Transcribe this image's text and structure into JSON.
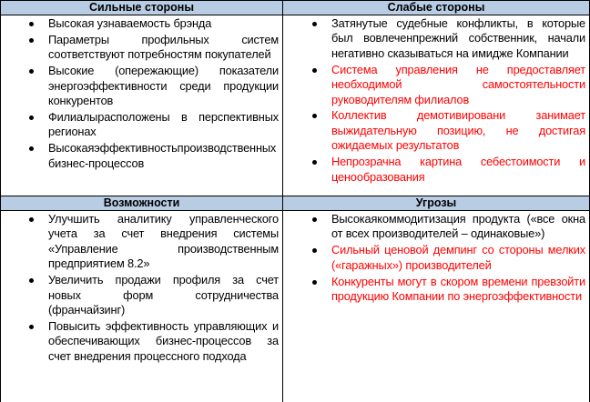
{
  "colors": {
    "header_bg": "#b8cce4",
    "highlight_text": "#ff0000",
    "text": "#000000"
  },
  "strengths": {
    "title": "Сильные стороны",
    "items": [
      {
        "text": "Высокая узнаваемость брэнда",
        "red": false
      },
      {
        "text": "Параметры профильных систем соответствуют потребностям покупателей",
        "red": false
      },
      {
        "text": "Высокие (опережающие) показатели энергоэффективности среди продукции конкурентов",
        "red": false
      },
      {
        "text": "Филиалырасположены в перспективных регионах",
        "red": false
      },
      {
        "text": "Высокаяэффективностьпроизводственных бизнес-процессов",
        "red": false
      }
    ]
  },
  "weaknesses": {
    "title": "Слабые стороны",
    "items": [
      {
        "text": "Затянутые судебные конфликты, в которые был вовлеченпрежний собственник, начали негативно сказываться на имидже Компании",
        "red": false
      },
      {
        "text": "Система управления не предоставляет необходимой самостоятельности руководителям филиалов",
        "red": true
      },
      {
        "text": "Коллектив демотивировани занимает выжидательную позицию, не достигая ожидаемых результатов",
        "red": true
      },
      {
        "text": "Непрозрачна картина себестоимости и ценообразования",
        "red": true
      }
    ]
  },
  "opportunities": {
    "title": "Возможности",
    "items": [
      {
        "text": "Улучшить аналитику управленческого учета за счет внедрения системы «Управление производственным предприятием 8.2»",
        "red": false
      },
      {
        "text": "Увеличить продажи профиля за счет новых форм сотрудничества (франчайзинг)",
        "red": false
      },
      {
        "text": "Повысить эффективность управляющих и обеспечивающих бизнес-процессов за счет внедрения процессного подхода",
        "red": false
      }
    ]
  },
  "threats": {
    "title": "Угрозы",
    "items": [
      {
        "text": "Высокаякоммодитизация продукта («все окна от всех производителей – одинаковые»)",
        "red": false
      },
      {
        "text": "Сильный ценовой демпинг со стороны мелких («гаражных») производителей",
        "red": true
      },
      {
        "text": "Конкуренты могут в скором времени превзойти продукцию Компании по энергоэффективности",
        "red": true
      }
    ]
  }
}
